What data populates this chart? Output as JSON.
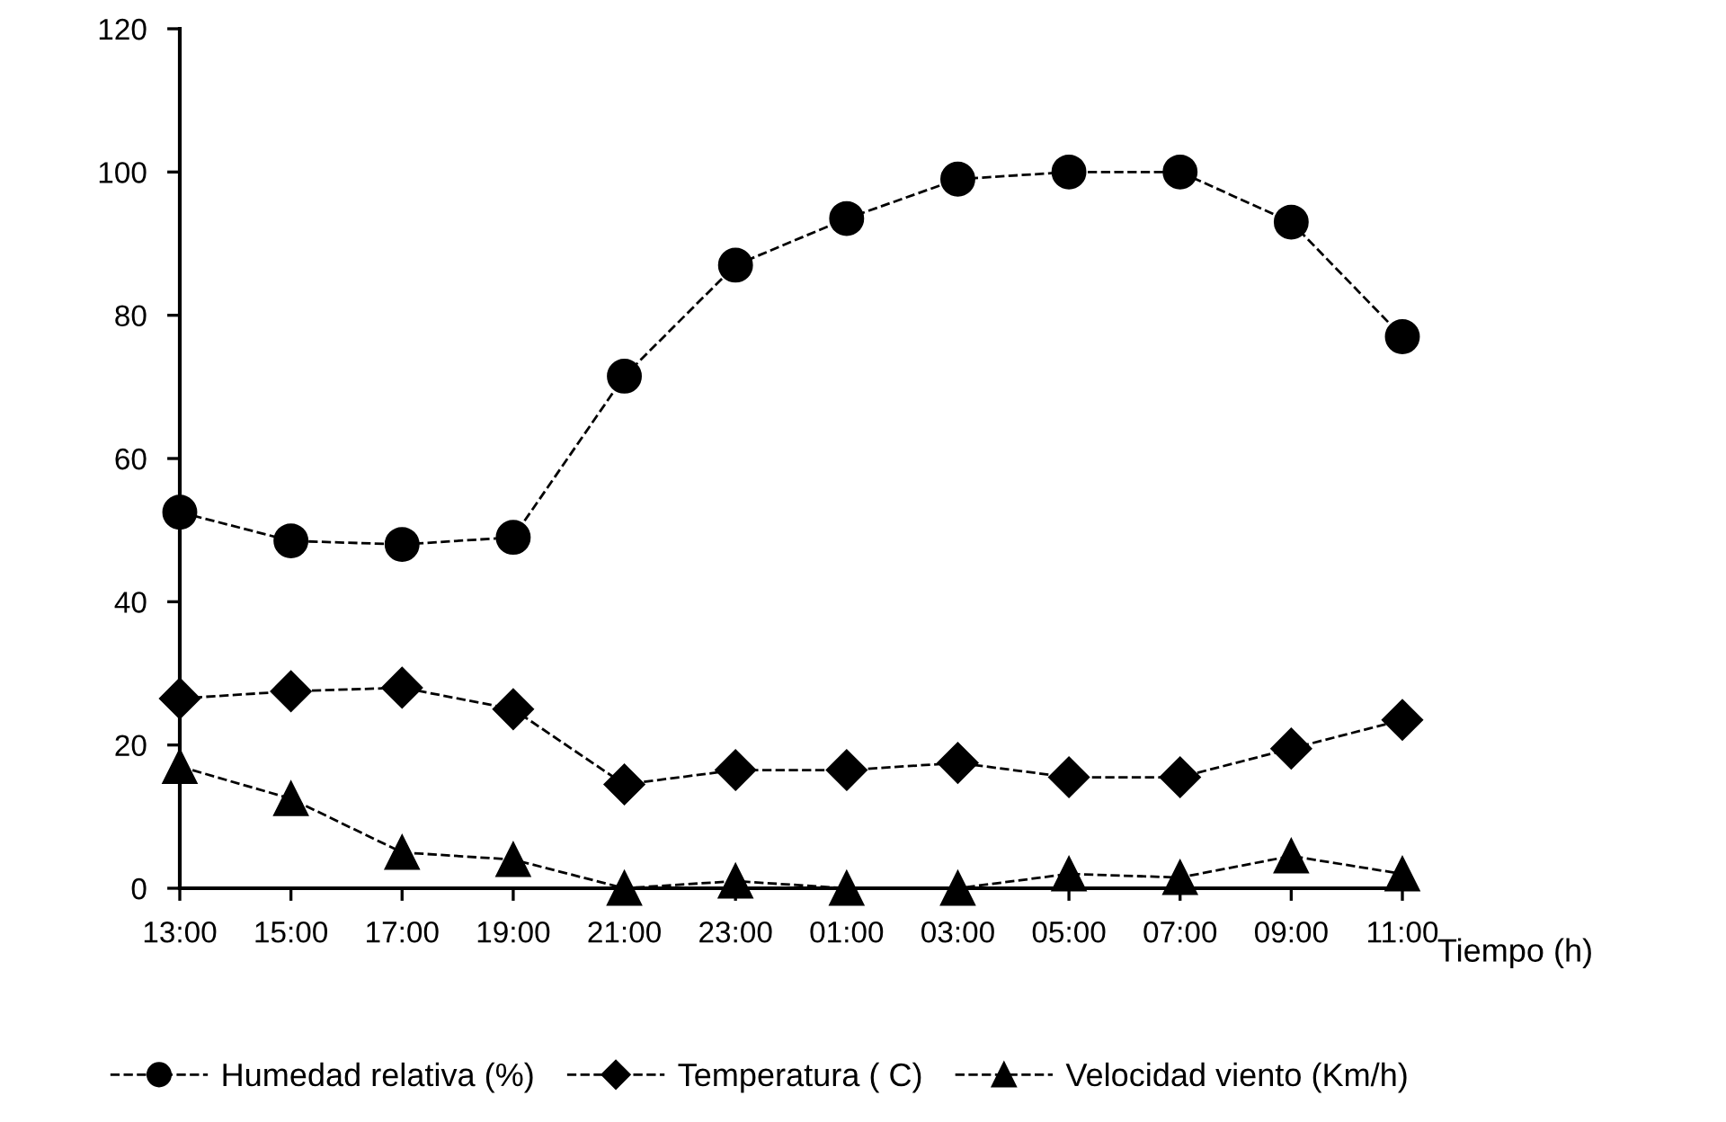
{
  "chart_data": {
    "type": "line",
    "xlabel": "Tiempo (h)",
    "categories": [
      "13:00",
      "15:00",
      "17:00",
      "19:00",
      "21:00",
      "23:00",
      "01:00",
      "03:00",
      "05:00",
      "07:00",
      "09:00",
      "11:00"
    ],
    "series": [
      {
        "name": "Humedad relativa (%)",
        "color": "#000000",
        "marker": "circle",
        "values": [
          52.5,
          48.5,
          48,
          49,
          71.5,
          87,
          93.5,
          99,
          100,
          100,
          93,
          77
        ]
      },
      {
        "name": "Temperatura ( C)",
        "color": "#000000",
        "marker": "diamond",
        "values": [
          26.5,
          27.5,
          28,
          25,
          14.5,
          16.5,
          16.5,
          17.5,
          15.5,
          15.5,
          19.5,
          23.5
        ]
      },
      {
        "name": "Velocidad viento (Km/h)",
        "color": "#000000",
        "marker": "triangle",
        "values": [
          17,
          12.5,
          5,
          4,
          0,
          1,
          0,
          0,
          2,
          1.5,
          4.5,
          2
        ]
      }
    ],
    "ylim": [
      0,
      120
    ],
    "yticks": [
      0,
      20,
      40,
      60,
      80,
      100,
      120
    ],
    "grid": false,
    "legend": "bottom",
    "line_style": "dashed"
  }
}
